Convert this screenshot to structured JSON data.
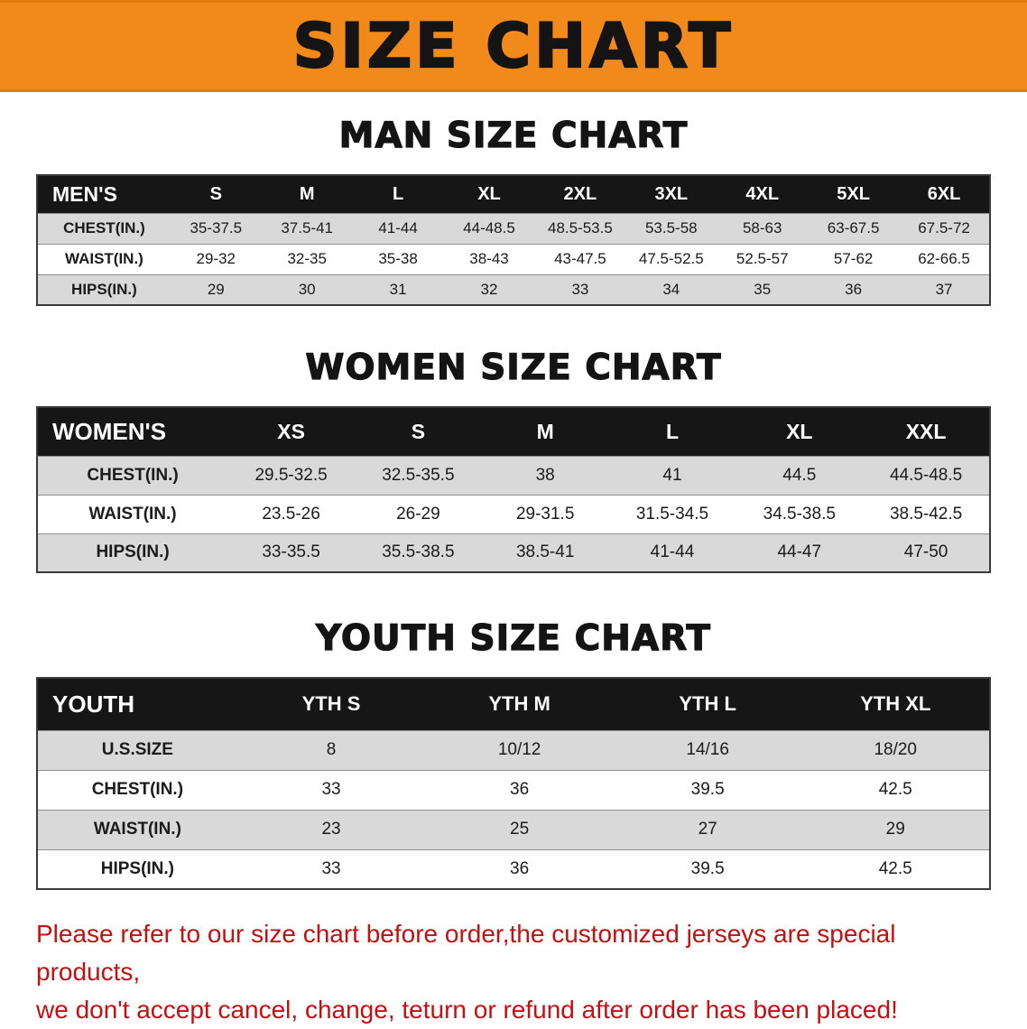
{
  "banner": {
    "title": "SIZE CHART"
  },
  "colors": {
    "banner_orange": "#f1891b",
    "table_header_black": "#161616",
    "row_stripe_gray": "#d9d9d9",
    "notice_red": "#c11212"
  },
  "sections": [
    {
      "heading": "MAN SIZE CHART",
      "table": {
        "header_label": "MEN'S",
        "columns": [
          "S",
          "M",
          "L",
          "XL",
          "2XL",
          "3XL",
          "4XL",
          "5XL",
          "6XL"
        ],
        "rows": [
          {
            "label": "CHEST(IN.)",
            "values": [
              "35-37.5",
              "37.5-41",
              "41-44",
              "44-48.5",
              "48.5-53.5",
              "53.5-58",
              "58-63",
              "63-67.5",
              "67.5-72"
            ]
          },
          {
            "label": "WAIST(IN.)",
            "values": [
              "29-32",
              "32-35",
              "35-38",
              "38-43",
              "43-47.5",
              "47.5-52.5",
              "52.5-57",
              "57-62",
              "62-66.5"
            ]
          },
          {
            "label": "HIPS(IN.)",
            "values": [
              "29",
              "30",
              "31",
              "32",
              "33",
              "34",
              "35",
              "36",
              "37"
            ]
          }
        ]
      }
    },
    {
      "heading": "WOMEN SIZE CHART",
      "table": {
        "header_label": "WOMEN'S",
        "columns": [
          "XS",
          "S",
          "M",
          "L",
          "XL",
          "XXL"
        ],
        "rows": [
          {
            "label": "CHEST(IN.)",
            "values": [
              "29.5-32.5",
              "32.5-35.5",
              "38",
              "41",
              "44.5",
              "44.5-48.5"
            ]
          },
          {
            "label": "WAIST(IN.)",
            "values": [
              "23.5-26",
              "26-29",
              "29-31.5",
              "31.5-34.5",
              "34.5-38.5",
              "38.5-42.5"
            ]
          },
          {
            "label": "HIPS(IN.)",
            "values": [
              "33-35.5",
              "35.5-38.5",
              "38.5-41",
              "41-44",
              "44-47",
              "47-50"
            ]
          }
        ]
      }
    },
    {
      "heading": "YOUTH SIZE CHART",
      "table": {
        "header_label": "YOUTH",
        "columns": [
          "YTH S",
          "YTH M",
          "YTH L",
          "YTH XL"
        ],
        "rows": [
          {
            "label": "U.S.SIZE",
            "values": [
              "8",
              "10/12",
              "14/16",
              "18/20"
            ]
          },
          {
            "label": "CHEST(IN.)",
            "values": [
              "33",
              "36",
              "39.5",
              "42.5"
            ]
          },
          {
            "label": "WAIST(IN.)",
            "values": [
              "23",
              "25",
              "27",
              "29"
            ]
          },
          {
            "label": "HIPS(IN.)",
            "values": [
              "33",
              "36",
              "39.5",
              "42.5"
            ]
          }
        ]
      }
    }
  ],
  "footer": {
    "lines": [
      "Please refer to our size chart before order,the customized jerseys are special products,",
      "we don't accept cancel, change, teturn or refund after order has been placed!"
    ]
  }
}
